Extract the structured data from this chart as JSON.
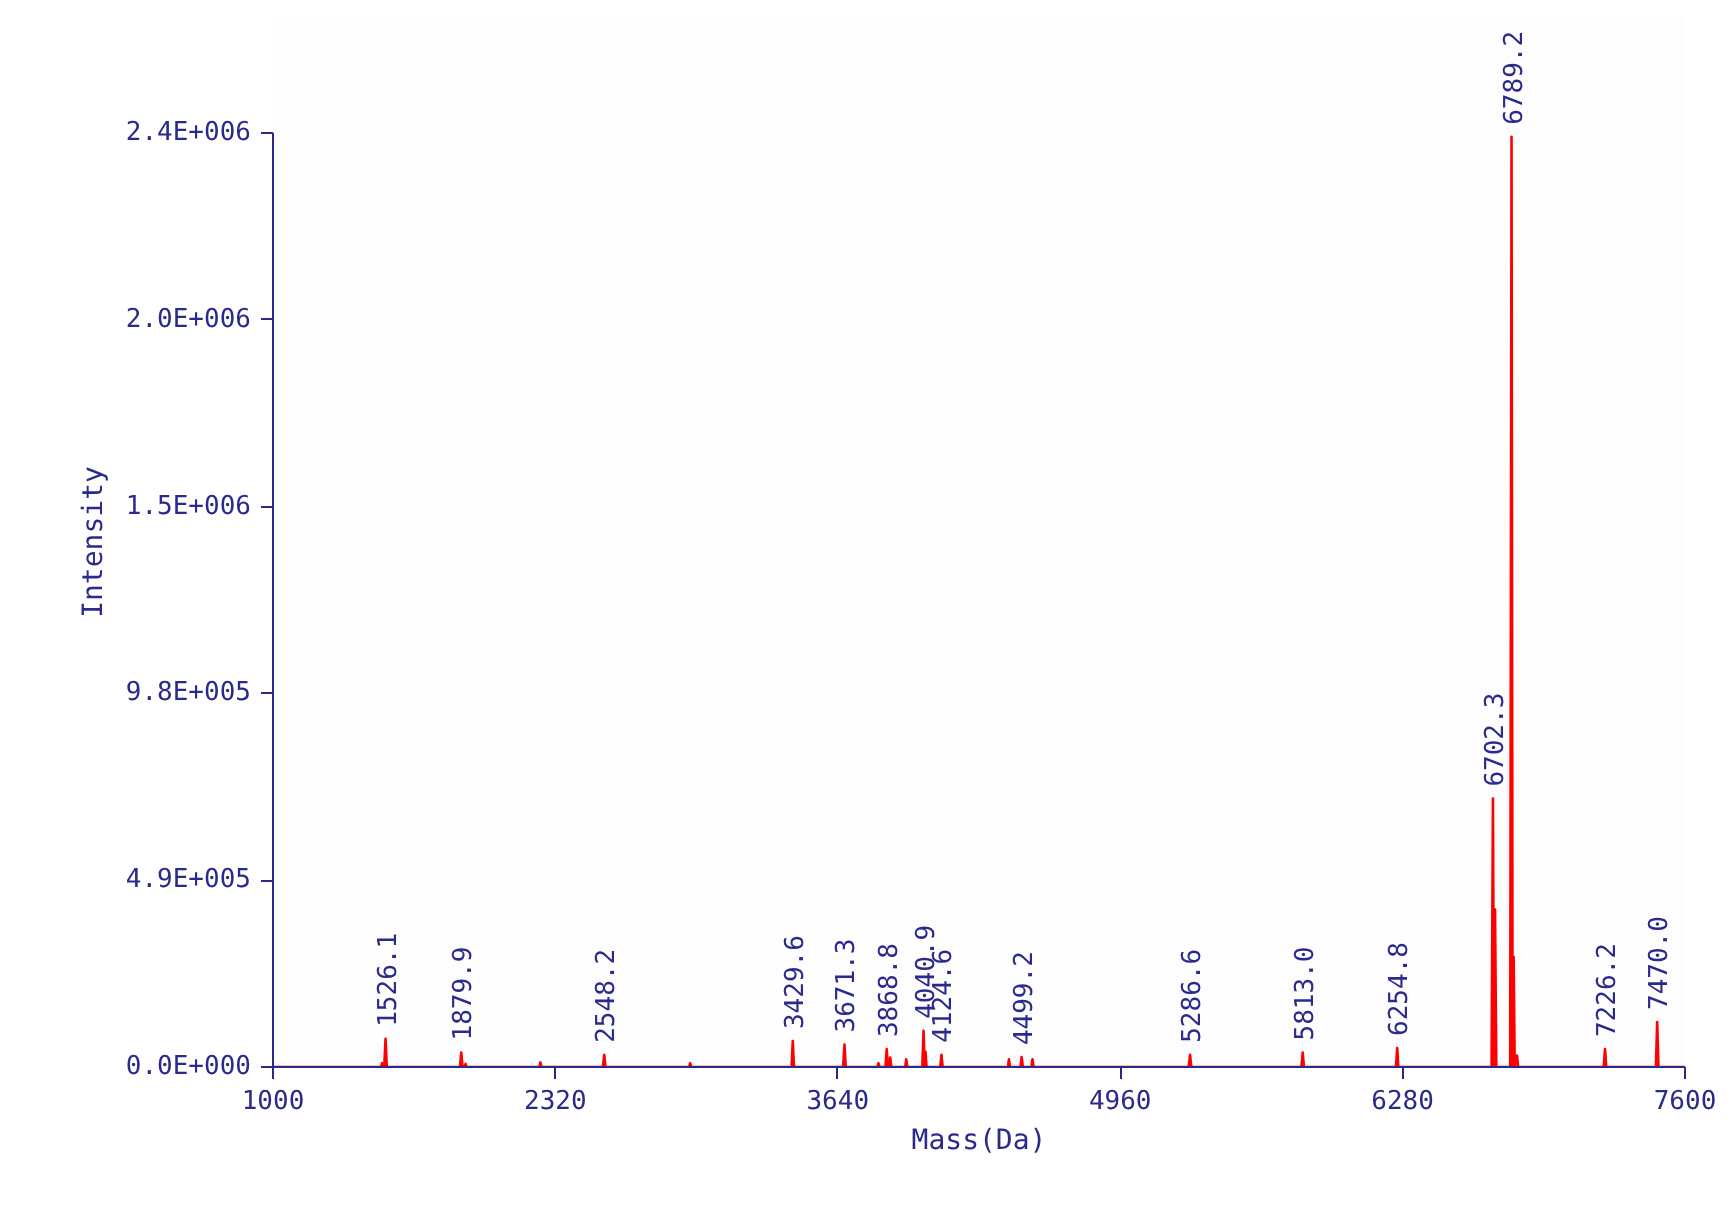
{
  "chart_data": {
    "type": "line",
    "xlabel": "Mass(Da)",
    "ylabel": "Intensity",
    "xlim": [
      1000,
      7600
    ],
    "xticks": [
      1000,
      2320,
      3640,
      4960,
      6280,
      7600
    ],
    "ylim": [
      0,
      2450000
    ],
    "yticks": [
      {
        "value": 0,
        "label": "0.0E+000"
      },
      {
        "value": 490000,
        "label": "4.9E+005"
      },
      {
        "value": 980000,
        "label": "9.8E+005"
      },
      {
        "value": 1470000,
        "label": "1.5E+006"
      },
      {
        "value": 1960000,
        "label": "2.0E+006"
      },
      {
        "value": 2450000,
        "label": "2.4E+006"
      }
    ],
    "grid": false,
    "marker": "none",
    "line_style": "solid",
    "series": [
      {
        "color": "#ff0000",
        "x": [
          1000,
          1505,
          1510,
          1515,
          1520,
          1526.1,
          1532,
          1874,
          1879.9,
          1886,
          1895,
          1900,
          1905,
          2245,
          2250,
          2255,
          2542,
          2548.2,
          2554,
          2945,
          2950,
          2955,
          3424,
          3429.6,
          3435,
          3665,
          3671.3,
          3677,
          3825,
          3830,
          3835,
          3863,
          3868.8,
          3874,
          3880,
          3885,
          3890,
          3955,
          3960,
          3965,
          4035,
          4040.9,
          4046,
          4050,
          4055,
          4119,
          4124.6,
          4130,
          4435,
          4440,
          4445,
          4494,
          4499.2,
          4505,
          4545,
          4550,
          4555,
          5280,
          5286.6,
          5292,
          5807,
          5813.0,
          5819,
          6249,
          6254.8,
          6260,
          6696,
          6702.3,
          6707,
          6712,
          6718,
          6783,
          6789.2,
          6794,
          6799,
          6804,
          6815,
          6820,
          7220,
          7226.2,
          7232,
          7464,
          7470.0,
          7476,
          7600
        ],
        "values": [
          0,
          0,
          10000,
          0,
          0,
          74000,
          0,
          0,
          38000,
          0,
          0,
          8000,
          0,
          0,
          12000,
          0,
          0,
          32000,
          0,
          0,
          10000,
          0,
          0,
          68000,
          0,
          0,
          59000,
          0,
          0,
          10000,
          0,
          0,
          47000,
          0,
          0,
          25000,
          0,
          0,
          20000,
          0,
          0,
          95000,
          0,
          40000,
          0,
          0,
          32000,
          0,
          0,
          20000,
          0,
          0,
          26000,
          0,
          0,
          20000,
          0,
          0,
          32000,
          0,
          0,
          38000,
          0,
          0,
          50000,
          0,
          0,
          704000,
          0,
          413000,
          0,
          0,
          2440000,
          0,
          289000,
          0,
          30000,
          0,
          0,
          47000,
          0,
          0,
          118000,
          0,
          0
        ]
      }
    ],
    "annotations": [
      {
        "text": "1526.1",
        "x": 1526.1,
        "y": 74000
      },
      {
        "text": "1879.9",
        "x": 1879.9,
        "y": 38000
      },
      {
        "text": "2548.2",
        "x": 2548.2,
        "y": 32000
      },
      {
        "text": "3429.6",
        "x": 3429.6,
        "y": 68000
      },
      {
        "text": "3671.3",
        "x": 3671.3,
        "y": 59000
      },
      {
        "text": "3868.8",
        "x": 3868.8,
        "y": 47000
      },
      {
        "text": "4040.9",
        "x": 4040.9,
        "y": 95000
      },
      {
        "text": "4124.6",
        "x": 4124.6,
        "y": 32000
      },
      {
        "text": "4499.2",
        "x": 4499.2,
        "y": 26000
      },
      {
        "text": "5286.6",
        "x": 5286.6,
        "y": 32000
      },
      {
        "text": "5813.0",
        "x": 5813.0,
        "y": 38000
      },
      {
        "text": "6254.8",
        "x": 6254.8,
        "y": 50000
      },
      {
        "text": "6702.3",
        "x": 6702.3,
        "y": 704000
      },
      {
        "text": "6789.2",
        "x": 6789.2,
        "y": 2440000
      },
      {
        "text": "7226.2",
        "x": 7226.2,
        "y": 47000
      },
      {
        "text": "7470.0",
        "x": 7470.0,
        "y": 118000
      }
    ]
  }
}
